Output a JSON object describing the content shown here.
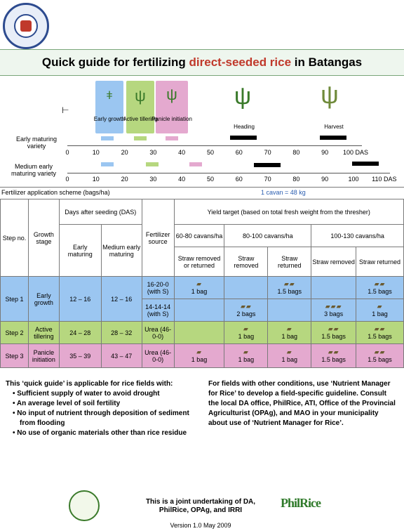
{
  "title": {
    "prefix": "Quick guide for fertilizing ",
    "highlight": "direct-seeded rice",
    "suffix": " in Batangas"
  },
  "stages": [
    {
      "name": "Early growth",
      "color": "#9bc6f1"
    },
    {
      "name": "Active tillering",
      "color": "#b6d77f"
    },
    {
      "name": "Panicle initiation",
      "color": "#e4a9cf"
    },
    {
      "name": "Heading",
      "color": ""
    },
    {
      "name": "Harvest",
      "color": ""
    }
  ],
  "varieties": {
    "early": "Early maturing variety",
    "medium": "Medium early maturing variety",
    "early_ticks": [
      "0",
      "10",
      "20",
      "30",
      "40",
      "50",
      "60",
      "70",
      "80",
      "90",
      "100 DAS"
    ],
    "medium_ticks": [
      "0",
      "10",
      "20",
      "30",
      "40",
      "50",
      "60",
      "70",
      "80",
      "90",
      "100",
      "110 DAS"
    ]
  },
  "scheme": {
    "label": "Fertilizer application scheme (bags/ha)",
    "cavan": "1 cavan = 48 kg"
  },
  "table": {
    "h_step": "Step no.",
    "h_growth": "Growth stage",
    "h_das": "Days after seeding (DAS)",
    "h_early": "Early maturing",
    "h_medium": "Medium early maturing",
    "h_source": "Fertilizer source",
    "h_yield": "Yield target (based on total fresh weight from the thresher)",
    "h_y1": "60-80 cavans/ha",
    "h_y2": "80-100 cavans/ha",
    "h_y3": "100-130 cavans/ha",
    "h_srr": "Straw removed or returned",
    "h_sr": "Straw removed",
    "h_st": "Straw returned",
    "rows": [
      {
        "step": "Step 1",
        "stage": "Early growth",
        "early": "12 – 16",
        "medium": "12 – 16",
        "source": "16-20-0 (with S)",
        "c1": "1 bag",
        "c2": "",
        "c3": "1.5 bags",
        "c4": "",
        "c5": "1.5 bags"
      },
      {
        "source": "14-14-14 (with S)",
        "c1": "",
        "c2": "2 bags",
        "c3": "",
        "c4": "3 bags",
        "c5": "1 bag"
      },
      {
        "step": "Step 2",
        "stage": "Active tillering",
        "early": "24 – 28",
        "medium": "28 – 32",
        "source": "Urea (46-0-0)",
        "c1": "",
        "c2": "1 bag",
        "c3": "1 bag",
        "c4": "1.5 bags",
        "c5": "1.5 bags"
      },
      {
        "step": "Step 3",
        "stage": "Panicle initiation",
        "early": "35 – 39",
        "medium": "43 – 47",
        "source": "Urea (46-0-0)",
        "c1": "1 bag",
        "c2": "1 bag",
        "c3": "1 bag",
        "c4": "1.5 bags",
        "c5": "1.5 bags"
      }
    ]
  },
  "notes_left": {
    "intro": "This ‘quick guide’ is applicable for rice fields with:",
    "items": [
      "Sufficient supply of water to avoid drought",
      "An average level of soil fertility",
      "No input of nutrient through deposition of sediment from flooding",
      "No use of organic materials other than rice residue"
    ]
  },
  "notes_right": "For fields with other conditions, use ‘Nutrient Manager for Rice’ to develop a field-specific guideline. Consult the local DA office, PhilRice, ATI, Office of the Provincial Agriculturist (OPAg), and MAO in your municipality about use of ‘Nutrient Manager for Rice’.",
  "footer": {
    "text": "This is a joint undertaking of DA, PhilRice, OPAg, and IRRI",
    "version": "Version 1.0 May 2009",
    "logo": "PhilRice"
  }
}
